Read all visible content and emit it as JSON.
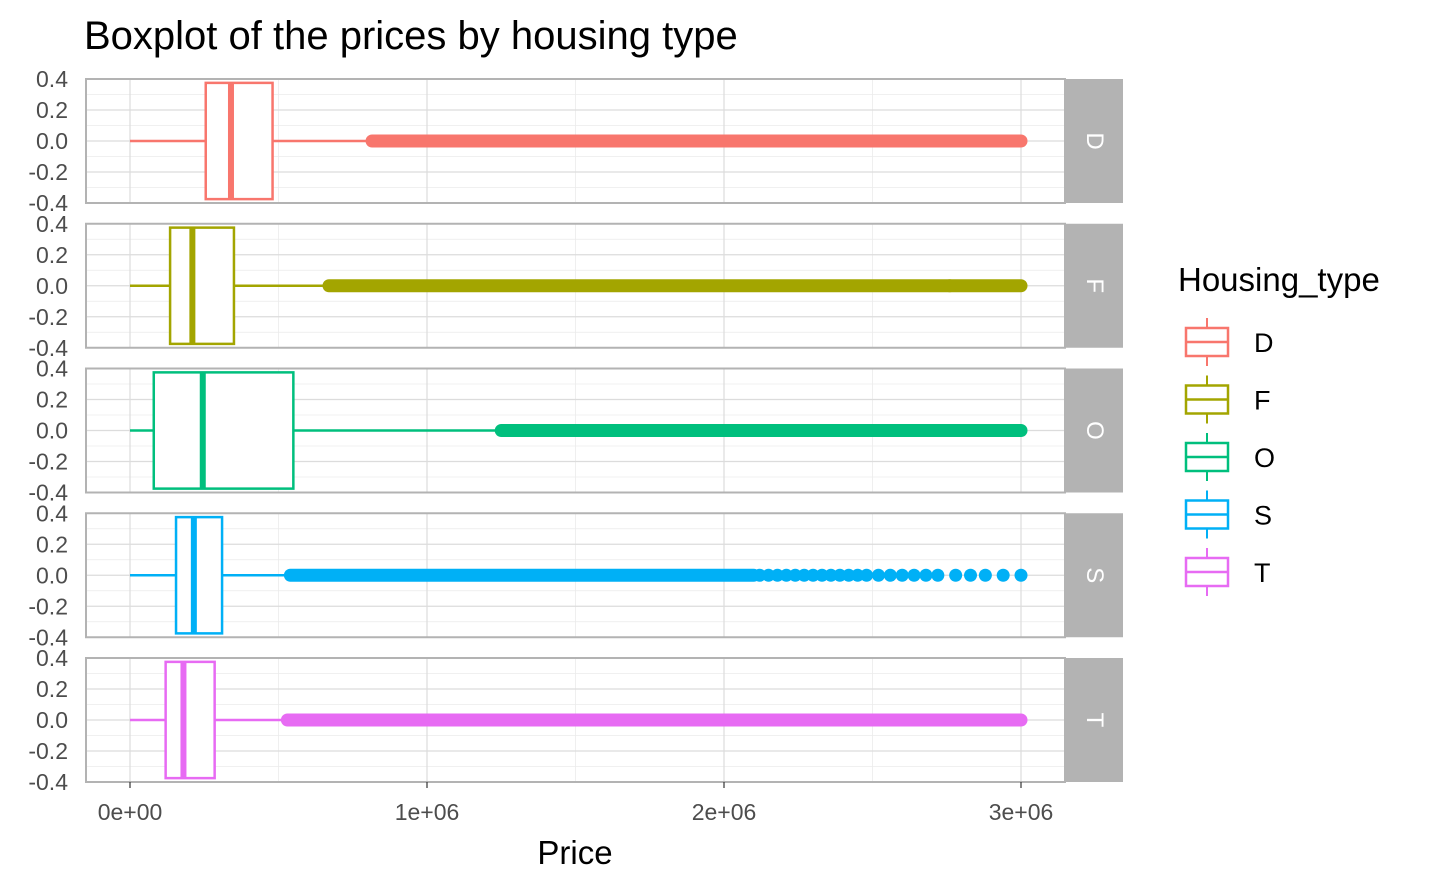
{
  "chart_data": {
    "type": "boxplot",
    "title": "Boxplot of the prices by housing type",
    "xlabel": "Price",
    "ylabel": "",
    "xlim": [
      -150000,
      3150000
    ],
    "x_ticks": [
      0,
      1000000,
      2000000,
      3000000
    ],
    "x_tick_labels": [
      "0e+00",
      "1e+06",
      "2e+06",
      "3e+06"
    ],
    "ylim": [
      -0.4,
      0.4
    ],
    "y_ticks": [
      0.4,
      0.2,
      0.0,
      -0.2,
      -0.4
    ],
    "y_tick_labels": [
      "0.4",
      "0.2",
      "0.0",
      "-0.2",
      "-0.4"
    ],
    "facet_by": "Housing_type",
    "grid": true,
    "legend": {
      "title": "Housing_type",
      "position": "right",
      "entries": [
        "D",
        "F",
        "O",
        "S",
        "T"
      ]
    },
    "series": [
      {
        "name": "D",
        "color": "#F8766D",
        "whisker_low": 0,
        "q1": 255000,
        "median": 340000,
        "q3": 480000,
        "whisker_high": 800000,
        "outliers_from": 815000,
        "outliers_to": 3000000,
        "sparse_outliers": []
      },
      {
        "name": "F",
        "color": "#A3A500",
        "whisker_low": 0,
        "q1": 135000,
        "median": 210000,
        "q3": 350000,
        "whisker_high": 660000,
        "outliers_from": 670000,
        "outliers_to": 3000000,
        "sparse_outliers": [
          2760000
        ]
      },
      {
        "name": "O",
        "color": "#00BF7D",
        "whisker_low": 0,
        "q1": 80000,
        "median": 245000,
        "q3": 550000,
        "whisker_high": 1240000,
        "outliers_from": 1250000,
        "outliers_to": 3000000,
        "sparse_outliers": []
      },
      {
        "name": "S",
        "color": "#00B0F6",
        "whisker_low": 0,
        "q1": 155000,
        "median": 215000,
        "q3": 310000,
        "whisker_high": 530000,
        "outliers_from": 540000,
        "outliers_to": 2100000,
        "sparse_outliers": [
          2120000,
          2150000,
          2180000,
          2210000,
          2240000,
          2270000,
          2300000,
          2330000,
          2360000,
          2390000,
          2420000,
          2450000,
          2480000,
          2520000,
          2560000,
          2600000,
          2640000,
          2680000,
          2720000,
          2780000,
          2830000,
          2880000,
          2940000,
          3000000
        ]
      },
      {
        "name": "T",
        "color": "#E76BF3",
        "whisker_low": 0,
        "q1": 120000,
        "median": 180000,
        "q3": 285000,
        "whisker_high": 520000,
        "outliers_from": 530000,
        "outliers_to": 3000000,
        "sparse_outliers": []
      }
    ]
  }
}
